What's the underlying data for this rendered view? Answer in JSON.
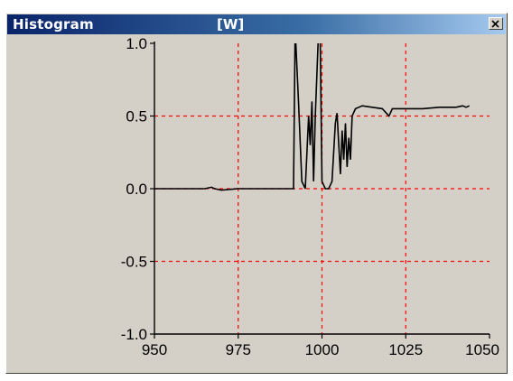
{
  "window": {
    "title": "Histogram",
    "unit": "[W]",
    "close_icon": "close-icon"
  },
  "colors": {
    "grid": "#ff0000",
    "line": "#000000",
    "background": "#d4d0c8",
    "titlebar_start": "#0a246a"
  },
  "chart_data": {
    "type": "line",
    "title": "",
    "xlabel": "",
    "ylabel": "",
    "xlim": [
      950,
      1050
    ],
    "ylim": [
      -1.0,
      1.0
    ],
    "x_ticks": [
      "950",
      "975",
      "1000",
      "1025",
      "1050"
    ],
    "y_ticks": [
      "1.0",
      "0.5",
      "0.0",
      "-0.5",
      "-1.0"
    ],
    "grid": true,
    "series": [
      {
        "x": [
          950,
          955,
          960,
          965,
          967,
          968,
          970,
          975,
          980,
          985,
          990,
          991.5,
          992,
          993,
          994,
          995,
          996,
          996.5,
          997,
          997.5,
          998,
          999,
          999.5,
          1000,
          1001,
          1002,
          1003,
          1004,
          1004.5,
          1005,
          1005.5,
          1006,
          1006.5,
          1007,
          1007.5,
          1008,
          1008.5,
          1009,
          1010,
          1011,
          1012,
          1015,
          1018,
          1020,
          1021,
          1022,
          1025,
          1030,
          1035,
          1040,
          1042,
          1043,
          1044
        ],
        "y": [
          0.0,
          0.0,
          0.0,
          0.0,
          0.01,
          0.0,
          -0.01,
          0.0,
          0.0,
          0.0,
          0.0,
          0.0,
          1.1,
          0.6,
          0.05,
          0.0,
          0.5,
          0.3,
          0.6,
          0.05,
          0.5,
          1.1,
          1.0,
          0.05,
          0.0,
          0.0,
          0.05,
          0.45,
          0.52,
          0.3,
          0.1,
          0.4,
          0.2,
          0.45,
          0.15,
          0.35,
          0.2,
          0.5,
          0.55,
          0.56,
          0.57,
          0.56,
          0.55,
          0.5,
          0.55,
          0.55,
          0.55,
          0.55,
          0.56,
          0.56,
          0.57,
          0.56,
          0.57
        ]
      }
    ]
  }
}
